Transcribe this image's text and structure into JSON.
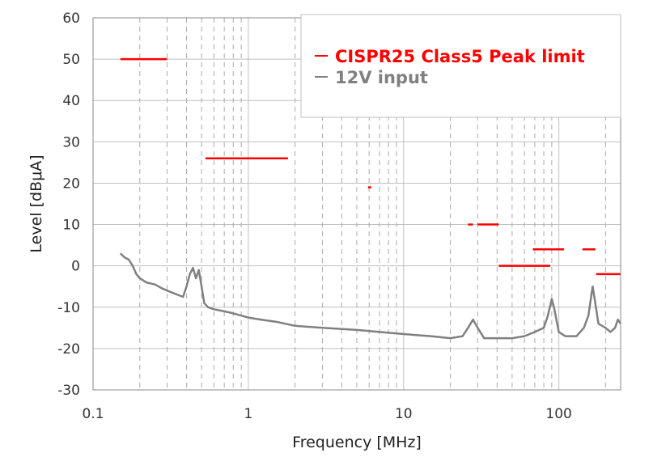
{
  "chart_data": {
    "type": "line",
    "xscale": "log",
    "xlim": [
      0.1,
      250
    ],
    "ylim": [
      -30,
      60
    ],
    "xlabel": "Frequency [MHz]",
    "ylabel": "Level [dBμA]",
    "x_major_ticks": [
      0.1,
      1,
      10,
      100
    ],
    "x_tick_labels": [
      "0.1",
      "1",
      "10",
      "100"
    ],
    "x_minor_gridlines": [
      0.2,
      0.3,
      0.4,
      0.5,
      0.6,
      0.7,
      0.8,
      0.9,
      2,
      3,
      4,
      5,
      6,
      7,
      8,
      9,
      20,
      30,
      40,
      50,
      60,
      70,
      80,
      90,
      200
    ],
    "y_ticks": [
      -30,
      -20,
      -10,
      0,
      10,
      20,
      30,
      40,
      50,
      60
    ],
    "y_tick_labels": [
      "-30",
      "-20",
      "-10",
      "0",
      "10",
      "20",
      "30",
      "40",
      "50",
      "60"
    ],
    "grid": true,
    "legend": {
      "position": "top-right",
      "entries": [
        {
          "label": "CISPR25 Class5 Peak limit",
          "color": "#ff0000"
        },
        {
          "label": "12V input",
          "color": "#808080"
        }
      ]
    },
    "series": [
      {
        "name": "CISPR25 Class5 Peak limit",
        "color": "#ff0000",
        "segments": [
          {
            "x": [
              0.15,
              0.3
            ],
            "y": 50
          },
          {
            "x": [
              0.53,
              1.8
            ],
            "y": 26
          },
          {
            "x": [
              5.9,
              6.2
            ],
            "y": 19
          },
          {
            "x": [
              26,
              28
            ],
            "y": 10
          },
          {
            "x": [
              30,
              41
            ],
            "y": 10
          },
          {
            "x": [
              41,
              88
            ],
            "y": 0
          },
          {
            "x": [
              68,
              108
            ],
            "y": 4
          },
          {
            "x": [
              142,
              172
            ],
            "y": 4
          },
          {
            "x": [
              174,
              250
            ],
            "y": -2
          }
        ]
      },
      {
        "name": "12V input",
        "color": "#808080",
        "points": [
          [
            0.15,
            3
          ],
          [
            0.16,
            2
          ],
          [
            0.17,
            1.5
          ],
          [
            0.18,
            0
          ],
          [
            0.19,
            -2
          ],
          [
            0.2,
            -3
          ],
          [
            0.22,
            -4
          ],
          [
            0.25,
            -4.5
          ],
          [
            0.28,
            -5.5
          ],
          [
            0.3,
            -6
          ],
          [
            0.35,
            -7
          ],
          [
            0.38,
            -7.5
          ],
          [
            0.4,
            -5
          ],
          [
            0.42,
            -2
          ],
          [
            0.44,
            -0.5
          ],
          [
            0.46,
            -3
          ],
          [
            0.48,
            -1
          ],
          [
            0.5,
            -5
          ],
          [
            0.52,
            -9
          ],
          [
            0.55,
            -10
          ],
          [
            0.6,
            -10.5
          ],
          [
            0.7,
            -11
          ],
          [
            0.8,
            -11.5
          ],
          [
            1.0,
            -12.5
          ],
          [
            1.2,
            -13
          ],
          [
            1.5,
            -13.5
          ],
          [
            2,
            -14.5
          ],
          [
            3,
            -15
          ],
          [
            5,
            -15.5
          ],
          [
            7,
            -16
          ],
          [
            10,
            -16.5
          ],
          [
            15,
            -17
          ],
          [
            20,
            -17.5
          ],
          [
            24,
            -17
          ],
          [
            26,
            -15
          ],
          [
            28,
            -13
          ],
          [
            30,
            -15
          ],
          [
            33,
            -17.5
          ],
          [
            40,
            -17.5
          ],
          [
            50,
            -17.5
          ],
          [
            60,
            -17
          ],
          [
            70,
            -16
          ],
          [
            80,
            -15
          ],
          [
            85,
            -12
          ],
          [
            90,
            -8
          ],
          [
            93,
            -10
          ],
          [
            100,
            -16
          ],
          [
            110,
            -17
          ],
          [
            130,
            -17
          ],
          [
            145,
            -15
          ],
          [
            155,
            -12
          ],
          [
            165,
            -5
          ],
          [
            170,
            -8
          ],
          [
            180,
            -14
          ],
          [
            200,
            -15
          ],
          [
            215,
            -16
          ],
          [
            230,
            -15
          ],
          [
            240,
            -13
          ],
          [
            250,
            -14
          ]
        ]
      }
    ]
  }
}
